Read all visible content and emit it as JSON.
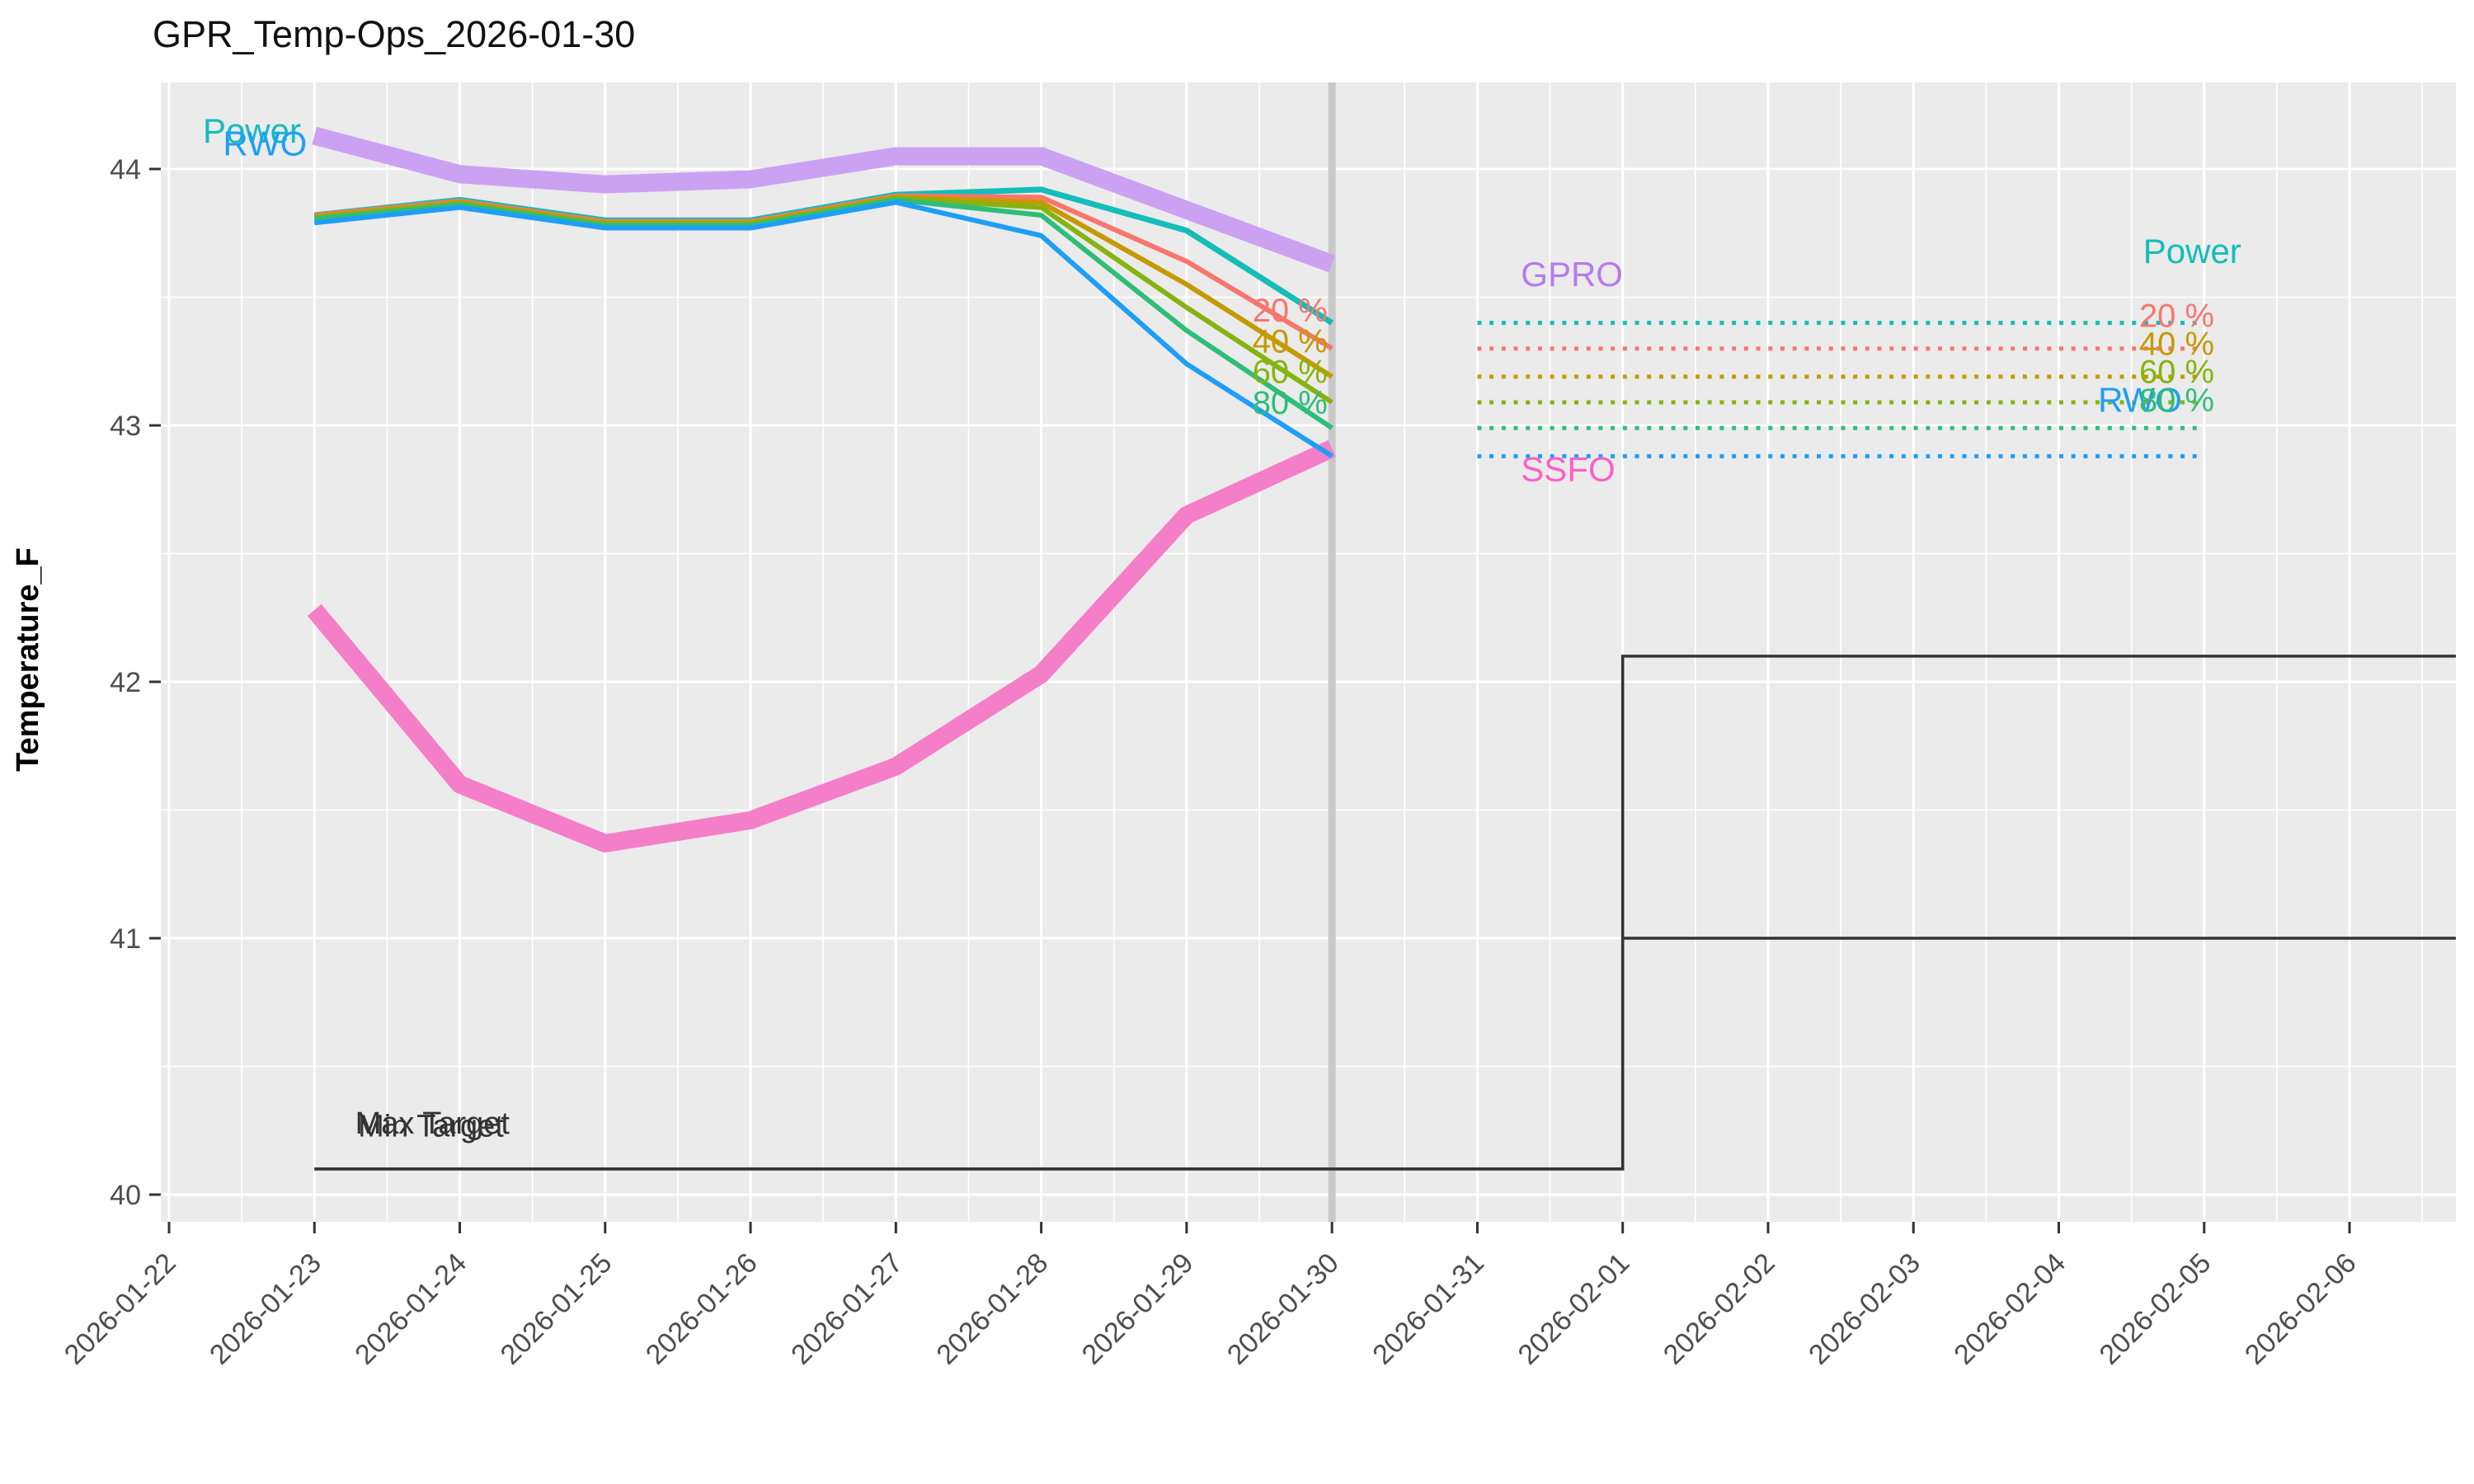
{
  "header": {
    "title": "GPR_Temp-Ops_2026-01-30"
  },
  "chart_data": {
    "type": "line",
    "title": "GPR_Temp-Ops_2026-01-30",
    "xlabel": "",
    "ylabel": "Temperature_F",
    "ylim": [
      39.89,
      44.34
    ],
    "y_ticks": [
      40,
      41,
      42,
      43,
      44
    ],
    "x_tick_dates": [
      "2026-01-22",
      "2026-01-23",
      "2026-01-24",
      "2026-01-25",
      "2026-01-26",
      "2026-01-27",
      "2026-01-28",
      "2026-01-29",
      "2026-01-30",
      "2026-01-31",
      "2026-02-01",
      "2026-02-02",
      "2026-02-03",
      "2026-02-04",
      "2026-02-05",
      "2026-02-06"
    ],
    "today_date": "2026-01-30",
    "grid": true,
    "legend_position": "direct-labels",
    "theme": {
      "panel_bg": "#EBEBEB",
      "grid_color": "#FFFFFF",
      "axis_text_color": "#4D4D4D",
      "tick_mark_color": "#333333",
      "today_line_color": "#C9C9C9",
      "target_line_color": "#333333",
      "title_color": "#111111"
    },
    "series": [
      {
        "name": "GPRO",
        "color": "#CBA2F2",
        "width": 22,
        "style": "solid",
        "start_date": "2026-01-23",
        "values": [
          44.13,
          43.98,
          43.94,
          43.96,
          44.05,
          44.05,
          43.84,
          43.63
        ]
      },
      {
        "name": "SSFO",
        "color": "#F47EC8",
        "width": 22,
        "style": "solid",
        "start_date": "2026-01-23",
        "values": [
          42.28,
          41.6,
          41.37,
          41.46,
          41.67,
          42.03,
          42.65,
          42.91
        ]
      },
      {
        "name": "Power",
        "color": "#14BDB8",
        "width": 7,
        "style": "solid",
        "start_date": "2026-01-23",
        "values": [
          43.82,
          43.88,
          43.8,
          43.8,
          43.9,
          43.92,
          43.76,
          43.4
        ]
      },
      {
        "name": "20 %",
        "color": "#F8766D",
        "width": 6,
        "style": "solid",
        "start_date": "2026-01-23",
        "values": [
          43.82,
          43.875,
          43.795,
          43.795,
          43.895,
          43.89,
          43.64,
          43.3
        ]
      },
      {
        "name": "40 %",
        "color": "#C49A00",
        "width": 6,
        "style": "solid",
        "start_date": "2026-01-23",
        "values": [
          43.815,
          43.87,
          43.79,
          43.79,
          43.89,
          43.87,
          43.55,
          43.19
        ]
      },
      {
        "name": "60 %",
        "color": "#85B310",
        "width": 6,
        "style": "solid",
        "start_date": "2026-01-23",
        "values": [
          43.81,
          43.865,
          43.785,
          43.785,
          43.885,
          43.85,
          43.46,
          43.09
        ]
      },
      {
        "name": "80 %",
        "color": "#2EBE77",
        "width": 6,
        "style": "solid",
        "start_date": "2026-01-23",
        "values": [
          43.805,
          43.86,
          43.78,
          43.78,
          43.88,
          43.82,
          43.37,
          42.99
        ]
      },
      {
        "name": "RWO",
        "color": "#1E9EF7",
        "width": 6,
        "style": "solid",
        "start_date": "2026-01-23",
        "values": [
          43.79,
          43.85,
          43.77,
          43.77,
          43.87,
          43.74,
          43.24,
          42.88
        ]
      }
    ],
    "forecast_dotted": [
      {
        "series": "Power",
        "color": "#14BDB8",
        "value": 43.4,
        "from": "2026-01-31",
        "to": "2026-02-05"
      },
      {
        "series": "20 %",
        "color": "#F8766D",
        "value": 43.3,
        "from": "2026-01-31",
        "to": "2026-02-05"
      },
      {
        "series": "40 %",
        "color": "#C49A00",
        "value": 43.19,
        "from": "2026-01-31",
        "to": "2026-02-05"
      },
      {
        "series": "60 %",
        "color": "#85B310",
        "value": 43.09,
        "from": "2026-01-31",
        "to": "2026-02-05"
      },
      {
        "series": "80 %",
        "color": "#2EBE77",
        "value": 42.99,
        "from": "2026-01-31",
        "to": "2026-02-05"
      },
      {
        "series": "RWO",
        "color": "#1E9EF7",
        "value": 42.88,
        "from": "2026-01-31",
        "to": "2026-02-05"
      }
    ],
    "targets": [
      {
        "name": "Max Target",
        "start_date": "2026-01-23",
        "base_value": 40.1,
        "step_date": "2026-02-01",
        "step_value": 42.1
      },
      {
        "name": "Min Target",
        "start_date": "2026-01-23",
        "base_value": 40.1,
        "step_date": "2026-02-01",
        "step_value": 41.0
      }
    ],
    "annotations": [
      {
        "text": "Power",
        "color": "#14BDB8",
        "day": 0.57,
        "value": 44.15,
        "anchor": "middle",
        "size": 42
      },
      {
        "text": "RWO",
        "color": "#1E9EF7",
        "day": 0.66,
        "value": 44.1,
        "anchor": "middle",
        "size": 42
      },
      {
        "text": "GPRO",
        "color": "#B57BEE",
        "day": 9.3,
        "value": 43.59,
        "anchor": "start",
        "size": 42
      },
      {
        "text": "SSFO",
        "color": "#FB61C4",
        "day": 9.3,
        "value": 42.83,
        "anchor": "start",
        "size": 42
      },
      {
        "text": "Power",
        "color": "#14BDB8",
        "day": 13.58,
        "value": 43.68,
        "anchor": "start",
        "size": 42
      },
      {
        "text": "20 %",
        "color": "#F8766D",
        "day": 7.97,
        "value": 43.45,
        "anchor": "end",
        "size": 40
      },
      {
        "text": "40 %",
        "color": "#C49A00",
        "day": 7.97,
        "value": 43.33,
        "anchor": "end",
        "size": 40
      },
      {
        "text": "60 %",
        "color": "#85B310",
        "day": 7.97,
        "value": 43.21,
        "anchor": "end",
        "size": 40
      },
      {
        "text": "80 %",
        "color": "#2EBE77",
        "day": 7.97,
        "value": 43.09,
        "anchor": "end",
        "size": 40
      },
      {
        "text": "RWO",
        "color": "#1E9EF7",
        "day": 13.27,
        "value": 43.1,
        "anchor": "start",
        "size": 42
      },
      {
        "text": "20 %",
        "color": "#F8766D",
        "day": 14.07,
        "value": 43.43,
        "anchor": "end",
        "size": 40
      },
      {
        "text": "40 %",
        "color": "#C49A00",
        "day": 14.07,
        "value": 43.32,
        "anchor": "end",
        "size": 40
      },
      {
        "text": "60 %",
        "color": "#85B310",
        "day": 14.07,
        "value": 43.21,
        "anchor": "end",
        "size": 40
      },
      {
        "text": "80 %",
        "color": "#2EBE77",
        "day": 14.07,
        "value": 43.1,
        "anchor": "end",
        "size": 40
      },
      {
        "text": "Max Target",
        "color": "#333333",
        "day": 1.28,
        "value": 40.28,
        "anchor": "start",
        "size": 38
      },
      {
        "text": "Min Target",
        "color": "#333333",
        "day": 1.3,
        "value": 40.27,
        "anchor": "start",
        "size": 38
      }
    ]
  }
}
